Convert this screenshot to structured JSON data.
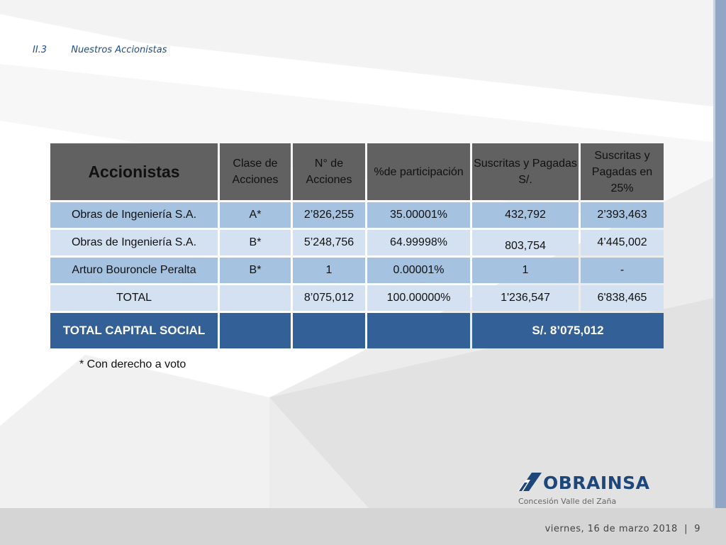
{
  "section": {
    "number": "II.3",
    "title": "Nuestros Accionistas"
  },
  "table": {
    "headers": [
      "Accionistas",
      "Clase de Acciones",
      "N° de Acciones",
      "%de participación",
      "Suscritas y Pagadas S/.",
      "Suscritas y Pagadas en 25%"
    ],
    "rows": [
      [
        "Obras de Ingeniería S.A.",
        "A*",
        "2’826,255",
        "35.00001%",
        "432,792",
        "2’393,463"
      ],
      [
        "Obras de Ingeniería S.A.",
        "B*",
        "5’248,756",
        "64.99998%",
        "803,754",
        "4’445,002"
      ],
      [
        "Arturo Bouroncle Peralta",
        "B*",
        "1",
        "0.00001%",
        "1",
        "-"
      ],
      [
        "TOTAL",
        "",
        "8’075,012",
        "100.00000%",
        "1'236,547",
        "6'838,465"
      ]
    ],
    "capital": {
      "label": "TOTAL CAPITAL SOCIAL",
      "value": "S/. 8’075,012"
    }
  },
  "note": "* Con derecho a voto",
  "logo": {
    "word": "OBRAINSA",
    "subtitle": "Concesión Valle del Zaña"
  },
  "footer": {
    "date": "viernes, 16 de marzo 2018",
    "separator": "|",
    "page": "9"
  },
  "colors": {
    "header": "#616161",
    "row_dark": "#a5c2e0",
    "row_light": "#d3e1f1",
    "total": "#336096",
    "brand": "#1d467a"
  }
}
